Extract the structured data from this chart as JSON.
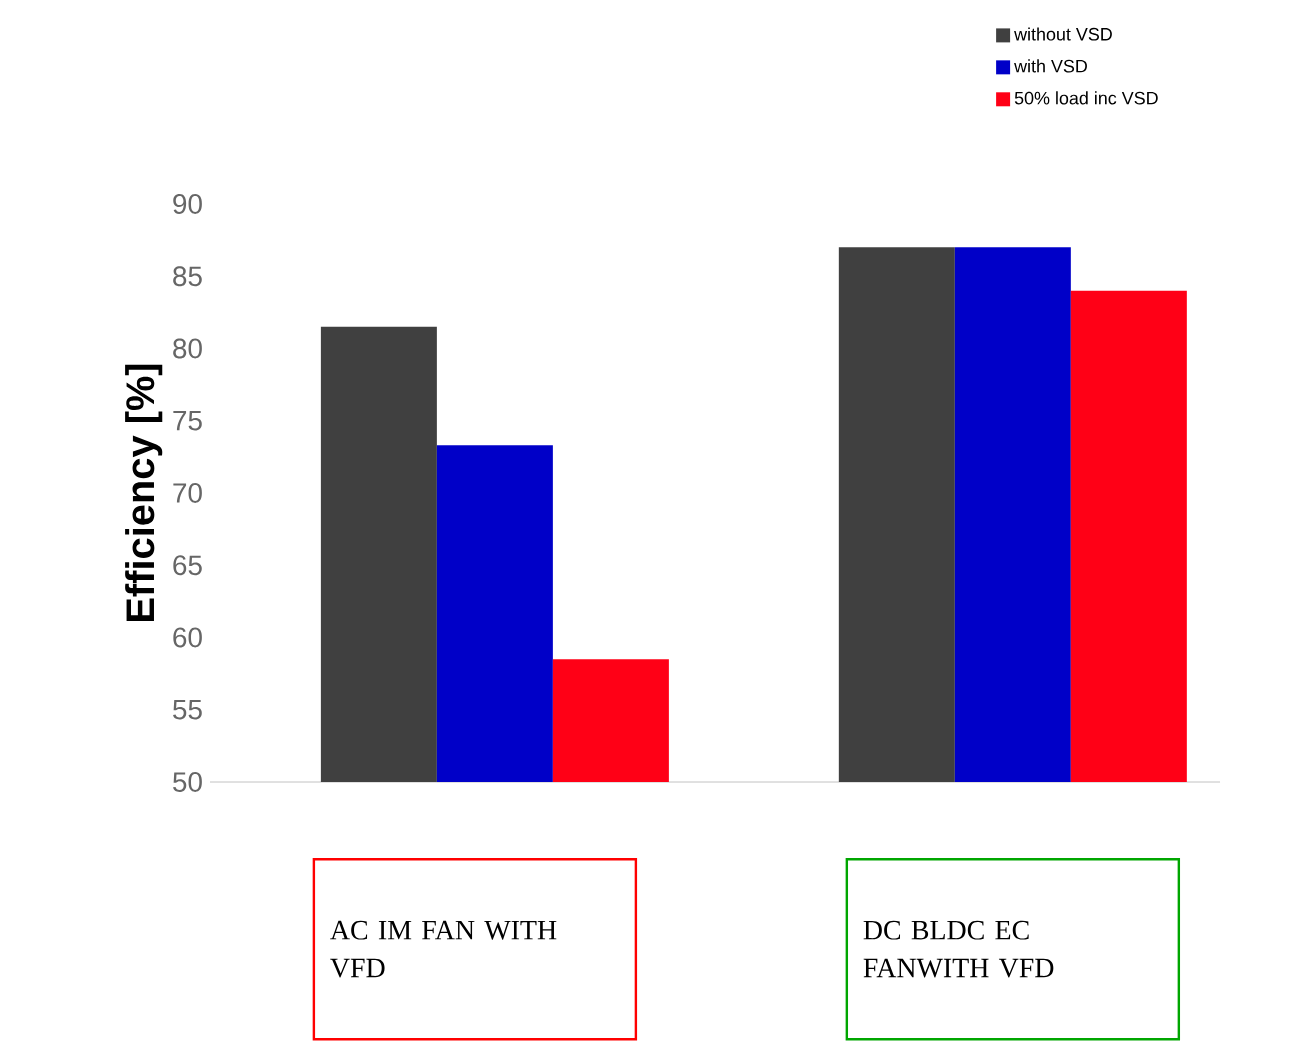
{
  "chart_data": {
    "type": "bar",
    "ylabel": "Efficiency [%]",
    "categories": [
      "AC IM FAN WITH VFD",
      "DC BLDC EC FANWITH VFD"
    ],
    "series": [
      {
        "name": "without VSD",
        "color": "#404040",
        "values": [
          81.5,
          87
        ]
      },
      {
        "name": "with VSD",
        "color": "#0000c8",
        "values": [
          73.3,
          87
        ]
      },
      {
        "name": "50% load inc VSD",
        "color": "#ff0016",
        "values": [
          58.5,
          84
        ]
      }
    ],
    "ylim": [
      50,
      90
    ],
    "yticks": [
      50,
      55,
      60,
      65,
      70,
      75,
      80,
      85,
      90
    ],
    "legend": "top right"
  }
}
